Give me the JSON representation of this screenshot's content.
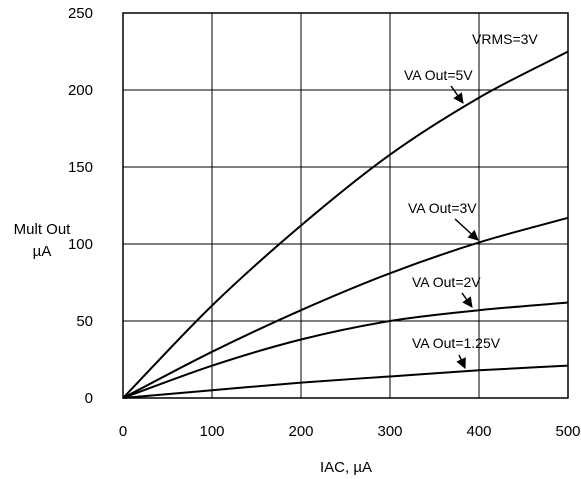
{
  "chart_data": {
    "type": "line",
    "title": "",
    "xlabel": "IAC, µA",
    "ylabel_line1": "Mult Out",
    "ylabel_line2": "µA",
    "xlim": [
      0,
      500
    ],
    "ylim": [
      0,
      250
    ],
    "x_ticks": [
      0,
      100,
      200,
      300,
      400,
      500
    ],
    "y_ticks": [
      0,
      50,
      100,
      150,
      200,
      250
    ],
    "grid": true,
    "condition_label": "VRMS=3V",
    "series": [
      {
        "name": "VA Out=5V",
        "x": [
          0,
          100,
          200,
          300,
          400,
          500
        ],
        "y": [
          0,
          60,
          112,
          158,
          195,
          225
        ]
      },
      {
        "name": "VA Out=3V",
        "x": [
          0,
          100,
          200,
          300,
          400,
          500
        ],
        "y": [
          0,
          30,
          57,
          81,
          101,
          117
        ]
      },
      {
        "name": "VA Out=2V",
        "x": [
          0,
          100,
          200,
          300,
          400,
          500
        ],
        "y": [
          0,
          21,
          38,
          50,
          57,
          62
        ]
      },
      {
        "name": "VA Out=1.25V",
        "x": [
          0,
          100,
          200,
          300,
          400,
          500
        ],
        "y": [
          0,
          5,
          10,
          14,
          18,
          21
        ]
      }
    ]
  }
}
